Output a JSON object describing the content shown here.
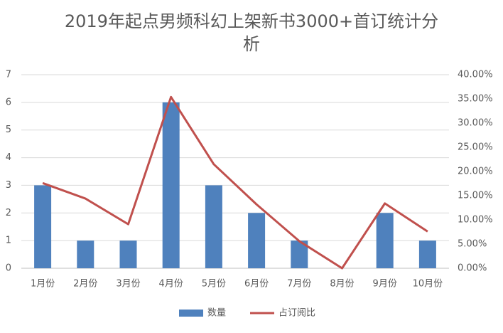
{
  "chart_data": {
    "type": "bar",
    "title": "2019年起点男频科幻上架新书3000+首订统计分析",
    "categories": [
      "1月份",
      "2月份",
      "3月份",
      "4月份",
      "5月份",
      "6月份",
      "7月份",
      "8月份",
      "9月份",
      "10月份"
    ],
    "series": [
      {
        "name": "数量",
        "color": "#4f81bd",
        "values": [
          3,
          1,
          1,
          6,
          3,
          2,
          1,
          0,
          2,
          1
        ]
      },
      {
        "name": "占订阅比",
        "color": "#c0504d",
        "type": "line",
        "axis": "y2",
        "values": [
          17.6,
          14.4,
          9.1,
          35.4,
          21.5,
          13.2,
          5.6,
          0,
          13.4,
          7.6
        ]
      }
    ],
    "ylim": [
      0,
      7
    ],
    "yticks": [
      0,
      1,
      2,
      3,
      4,
      5,
      6,
      7
    ],
    "y2lim": [
      0,
      40
    ],
    "y2ticks": [
      {
        "value": 0,
        "label": "0.00%"
      },
      {
        "value": 5,
        "label": "5.00%"
      },
      {
        "value": 10,
        "label": "10.00%"
      },
      {
        "value": 15,
        "label": "15.00%"
      },
      {
        "value": 20,
        "label": "20.00%"
      },
      {
        "value": 25,
        "label": "25.00%"
      },
      {
        "value": 30,
        "label": "30.00%"
      },
      {
        "value": 35,
        "label": "35.00%"
      },
      {
        "value": 40,
        "label": "40.00%"
      }
    ],
    "grid": true,
    "legend": "bottom"
  }
}
